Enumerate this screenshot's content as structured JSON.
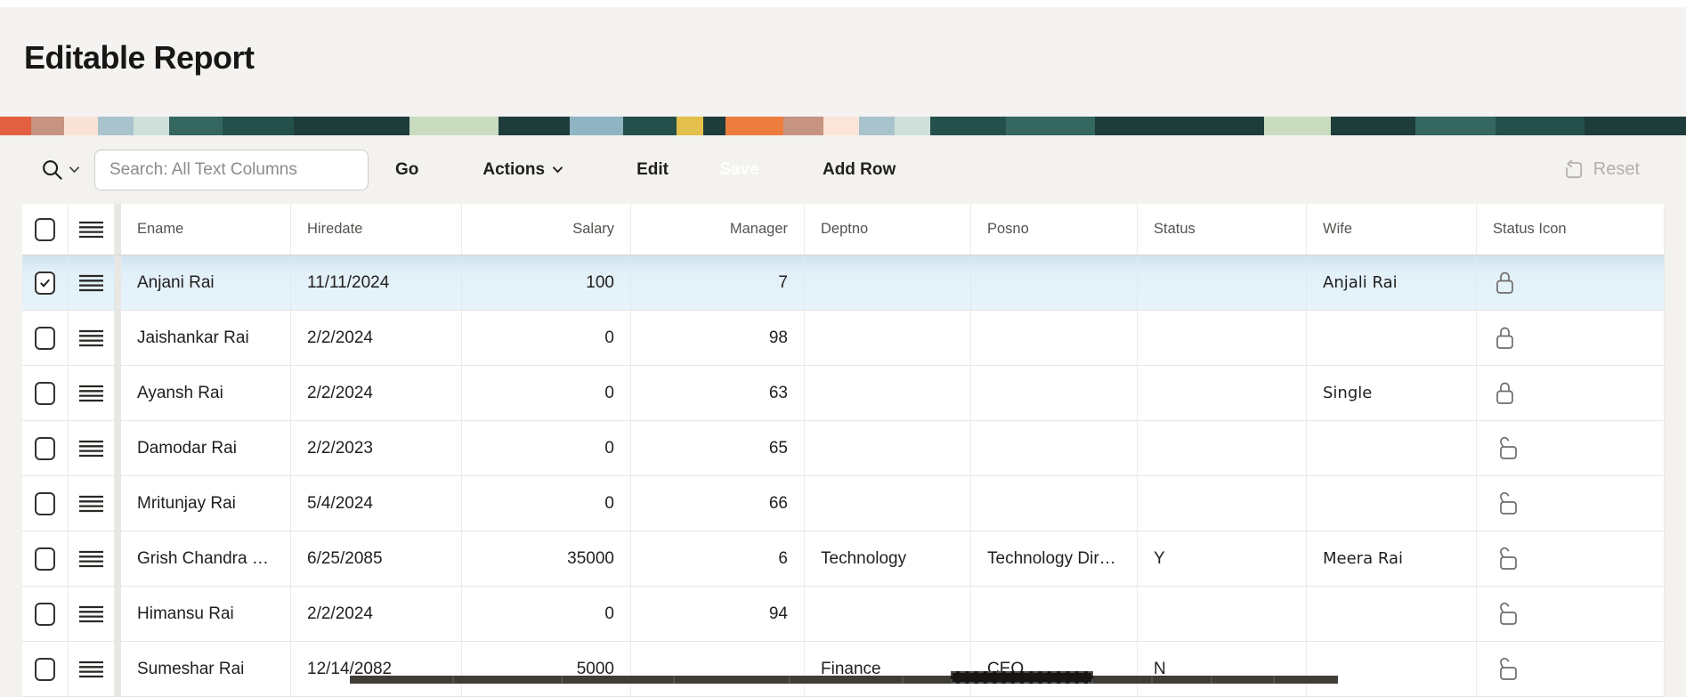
{
  "page": {
    "title": "Editable Report"
  },
  "toolbar": {
    "search_placeholder": "Search: All Text Columns",
    "go_label": "Go",
    "actions_label": "Actions",
    "edit_label": "Edit",
    "save_label": "Save",
    "add_row_label": "Add Row",
    "reset_label": "Reset"
  },
  "grid": {
    "columns": [
      {
        "key": "ename",
        "label": "Ename",
        "align": "left"
      },
      {
        "key": "hiredate",
        "label": "Hiredate",
        "align": "left"
      },
      {
        "key": "salary",
        "label": "Salary",
        "align": "right"
      },
      {
        "key": "manager",
        "label": "Manager",
        "align": "right"
      },
      {
        "key": "deptno",
        "label": "Deptno",
        "align": "left"
      },
      {
        "key": "posno",
        "label": "Posno",
        "align": "left"
      },
      {
        "key": "status",
        "label": "Status",
        "align": "left"
      },
      {
        "key": "wife",
        "label": "Wife",
        "align": "left"
      },
      {
        "key": "status_icon",
        "label": "Status Icon",
        "align": "left"
      }
    ],
    "rows": [
      {
        "selected": true,
        "checked": true,
        "ename": "Anjani Rai",
        "hiredate": "11/11/2024",
        "salary": "100",
        "manager": "7",
        "deptno": "",
        "posno": "",
        "status": "",
        "wife": "Anjali Rai",
        "lock": "locked"
      },
      {
        "selected": false,
        "checked": false,
        "ename": "Jaishankar Rai",
        "hiredate": "2/2/2024",
        "salary": "0",
        "manager": "98",
        "deptno": "",
        "posno": "",
        "status": "",
        "wife": "",
        "lock": "locked"
      },
      {
        "selected": false,
        "checked": false,
        "ename": "Ayansh Rai",
        "hiredate": "2/2/2024",
        "salary": "0",
        "manager": "63",
        "deptno": "",
        "posno": "",
        "status": "",
        "wife": "Single",
        "lock": "locked"
      },
      {
        "selected": false,
        "checked": false,
        "ename": "Damodar Rai",
        "hiredate": "2/2/2023",
        "salary": "0",
        "manager": "65",
        "deptno": "",
        "posno": "",
        "status": "",
        "wife": "",
        "lock": "unlocked"
      },
      {
        "selected": false,
        "checked": false,
        "ename": "Mritunjay Rai",
        "hiredate": "5/4/2024",
        "salary": "0",
        "manager": "66",
        "deptno": "",
        "posno": "",
        "status": "",
        "wife": "",
        "lock": "unlocked"
      },
      {
        "selected": false,
        "checked": false,
        "ename": "Grish Chandra …",
        "hiredate": "6/25/2085",
        "salary": "35000",
        "manager": "6",
        "deptno": "Technology",
        "posno": "Technology Dir…",
        "status": "Y",
        "wife": "Meera Rai",
        "lock": "unlocked"
      },
      {
        "selected": false,
        "checked": false,
        "ename": "Himansu Rai",
        "hiredate": "2/2/2024",
        "salary": "0",
        "manager": "94",
        "deptno": "",
        "posno": "",
        "status": "",
        "wife": "",
        "lock": "unlocked"
      },
      {
        "selected": false,
        "checked": false,
        "ename": "Sumeshar Rai",
        "hiredate": "12/14/2082",
        "salary": "5000",
        "manager": "",
        "deptno": "Finance",
        "posno": "CEO",
        "status": "N",
        "wife": "",
        "lock": "unlocked"
      }
    ]
  },
  "colors": {
    "page_bg": "#f3f2ef",
    "header_bg": "#f4f3f1",
    "toolbar_bg": "#f3f2ef",
    "save_button_bg": "#2f2b27",
    "save_button_text": "#ffffff",
    "selected_row_bg": "#e6f3fa",
    "placeholder": "#8f8c88",
    "reset_disabled": "#b3b0ac",
    "lock_icon": "#6e6c6a",
    "dev_toolbar_bg": "#403c37"
  }
}
